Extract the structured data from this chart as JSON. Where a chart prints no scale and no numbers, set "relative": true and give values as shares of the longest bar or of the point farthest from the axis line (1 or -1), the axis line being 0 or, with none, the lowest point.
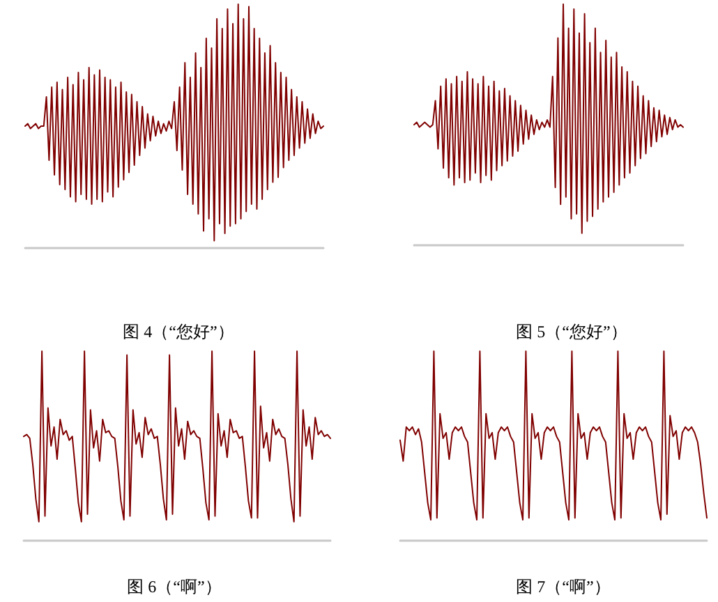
{
  "chart_data": [
    {
      "type": "line",
      "title": "图 4（“您好”）",
      "relative": true,
      "color": "#800000",
      "categories": [
        null,
        null,
        null,
        null,
        null,
        null,
        null,
        null,
        null,
        null,
        null,
        null,
        null,
        null,
        null,
        null,
        null,
        null,
        null,
        null,
        null,
        null,
        null,
        null,
        null,
        null,
        null,
        null,
        null,
        null,
        null,
        null,
        null,
        null,
        null,
        null,
        null,
        null,
        null,
        null,
        null,
        null,
        null,
        null,
        null,
        null,
        null,
        null,
        null,
        null,
        null,
        null,
        null,
        null,
        null,
        null,
        null,
        null,
        null,
        null,
        null,
        null,
        null,
        null,
        null,
        null,
        null,
        null,
        null,
        null,
        null,
        null,
        null,
        null,
        null,
        null,
        null,
        null,
        null,
        null,
        null,
        null,
        null,
        null,
        null,
        null,
        null,
        null,
        null,
        null,
        null,
        null,
        null,
        null,
        null,
        null,
        null,
        null,
        null,
        null,
        null,
        null,
        null,
        null,
        null,
        null,
        null,
        null,
        null,
        null,
        null,
        null,
        null
      ],
      "values": [
        0.5,
        0.51,
        0.49,
        0.5,
        0.51,
        0.49,
        0.5,
        0.5,
        0.62,
        0.36,
        0.66,
        0.3,
        0.68,
        0.26,
        0.65,
        0.24,
        0.7,
        0.21,
        0.67,
        0.19,
        0.72,
        0.22,
        0.69,
        0.2,
        0.74,
        0.18,
        0.71,
        0.2,
        0.73,
        0.19,
        0.7,
        0.23,
        0.69,
        0.21,
        0.66,
        0.25,
        0.68,
        0.28,
        0.64,
        0.31,
        0.63,
        0.34,
        0.6,
        0.38,
        0.58,
        0.41,
        0.55,
        0.44,
        0.54,
        0.46,
        0.52,
        0.47,
        0.51,
        0.48,
        0.52,
        0.49,
        0.6,
        0.4,
        0.66,
        0.32,
        0.76,
        0.22,
        0.7,
        0.18,
        0.8,
        0.14,
        0.74,
        0.07,
        0.86,
        0.12,
        0.82,
        0.03,
        0.94,
        0.1,
        0.9,
        0.06,
        0.98,
        0.09,
        0.92,
        0.1,
        1.0,
        0.12,
        0.94,
        0.15,
        0.99,
        0.18,
        0.9,
        0.16,
        0.86,
        0.2,
        0.8,
        0.24,
        0.83,
        0.27,
        0.76,
        0.29,
        0.72,
        0.33,
        0.7,
        0.36,
        0.65,
        0.38,
        0.62,
        0.41,
        0.6,
        0.43,
        0.57,
        0.45,
        0.55,
        0.47,
        0.52,
        0.49,
        0.5
      ]
    },
    {
      "type": "line",
      "title": "图 5（“您好”）",
      "relative": true,
      "color": "#800000",
      "categories": [
        null,
        null,
        null,
        null,
        null,
        null,
        null,
        null,
        null,
        null,
        null,
        null,
        null,
        null,
        null,
        null,
        null,
        null,
        null,
        null,
        null,
        null,
        null,
        null,
        null,
        null,
        null,
        null,
        null,
        null,
        null,
        null,
        null,
        null,
        null,
        null,
        null,
        null,
        null,
        null,
        null,
        null,
        null,
        null,
        null,
        null,
        null,
        null,
        null,
        null,
        null,
        null,
        null,
        null,
        null,
        null,
        null,
        null,
        null,
        null,
        null,
        null,
        null,
        null,
        null,
        null,
        null,
        null,
        null,
        null,
        null,
        null,
        null,
        null,
        null,
        null,
        null,
        null,
        null,
        null,
        null,
        null,
        null,
        null,
        null,
        null,
        null,
        null,
        null,
        null,
        null,
        null,
        null,
        null,
        null,
        null,
        null,
        null,
        null,
        null,
        null,
        null
      ],
      "values": [
        0.5,
        0.51,
        0.49,
        0.5,
        0.51,
        0.5,
        0.49,
        0.5,
        0.6,
        0.4,
        0.66,
        0.32,
        0.69,
        0.28,
        0.67,
        0.25,
        0.7,
        0.28,
        0.68,
        0.26,
        0.72,
        0.27,
        0.69,
        0.3,
        0.67,
        0.26,
        0.7,
        0.29,
        0.66,
        0.27,
        0.68,
        0.31,
        0.64,
        0.33,
        0.65,
        0.35,
        0.62,
        0.37,
        0.6,
        0.39,
        0.58,
        0.42,
        0.56,
        0.44,
        0.54,
        0.46,
        0.52,
        0.48,
        0.51,
        0.49,
        0.52,
        0.49,
        0.7,
        0.24,
        0.86,
        0.17,
        1.0,
        0.2,
        0.9,
        0.11,
        0.98,
        0.13,
        0.88,
        0.05,
        0.96,
        0.1,
        0.84,
        0.12,
        0.9,
        0.15,
        0.8,
        0.18,
        0.85,
        0.2,
        0.78,
        0.22,
        0.8,
        0.25,
        0.74,
        0.28,
        0.72,
        0.3,
        0.68,
        0.33,
        0.66,
        0.36,
        0.62,
        0.38,
        0.6,
        0.41,
        0.57,
        0.43,
        0.56,
        0.45,
        0.54,
        0.46,
        0.53,
        0.48,
        0.52,
        0.49,
        0.5,
        0.49
      ]
    },
    {
      "type": "line",
      "title": "图 6（“啊”）",
      "relative": true,
      "color": "#800000",
      "categories": [
        null,
        null,
        null,
        null,
        null,
        null,
        null,
        null,
        null,
        null,
        null,
        null,
        null,
        null,
        null,
        null,
        null,
        null,
        null,
        null,
        null,
        null,
        null,
        null,
        null,
        null,
        null,
        null,
        null,
        null,
        null,
        null,
        null,
        null,
        null,
        null,
        null,
        null,
        null,
        null,
        null,
        null,
        null,
        null,
        null,
        null,
        null,
        null,
        null,
        null,
        null,
        null,
        null,
        null,
        null,
        null,
        null,
        null,
        null,
        null,
        null,
        null,
        null,
        null,
        null,
        null,
        null,
        null,
        null,
        null,
        null,
        null,
        null,
        null,
        null,
        null,
        null,
        null,
        null,
        null,
        null,
        null,
        null,
        null,
        null,
        null,
        null,
        null,
        null,
        null,
        null,
        null,
        null,
        null,
        null,
        null,
        null,
        null,
        null,
        null,
        null,
        null
      ],
      "values": [
        0.55,
        0.56,
        0.54,
        0.4,
        0.22,
        0.1,
        1.0,
        0.13,
        0.7,
        0.5,
        0.6,
        0.43,
        0.64,
        0.56,
        0.58,
        0.53,
        0.55,
        0.38,
        0.2,
        0.1,
        1.0,
        0.14,
        0.69,
        0.49,
        0.58,
        0.42,
        0.64,
        0.57,
        0.58,
        0.55,
        0.54,
        0.39,
        0.21,
        0.11,
        0.98,
        0.13,
        0.69,
        0.51,
        0.57,
        0.44,
        0.65,
        0.56,
        0.59,
        0.54,
        0.55,
        0.4,
        0.22,
        0.11,
        0.98,
        0.14,
        0.7,
        0.5,
        0.59,
        0.43,
        0.63,
        0.56,
        0.58,
        0.55,
        0.54,
        0.38,
        0.2,
        0.11,
        1.0,
        0.13,
        0.67,
        0.5,
        0.58,
        0.44,
        0.64,
        0.57,
        0.58,
        0.54,
        0.55,
        0.39,
        0.21,
        0.12,
        1.0,
        0.12,
        0.71,
        0.49,
        0.57,
        0.42,
        0.64,
        0.56,
        0.59,
        0.55,
        0.54,
        0.4,
        0.22,
        0.1,
        1.0,
        0.13,
        0.69,
        0.5,
        0.6,
        0.43,
        0.65,
        0.56,
        0.58,
        0.55,
        0.56,
        0.54
      ]
    },
    {
      "type": "line",
      "title": "图 7（“啊”）",
      "relative": true,
      "color": "#800000",
      "categories": [
        null,
        null,
        null,
        null,
        null,
        null,
        null,
        null,
        null,
        null,
        null,
        null,
        null,
        null,
        null,
        null,
        null,
        null,
        null,
        null,
        null,
        null,
        null,
        null,
        null,
        null,
        null,
        null,
        null,
        null,
        null,
        null,
        null,
        null,
        null,
        null,
        null,
        null,
        null,
        null,
        null,
        null,
        null,
        null,
        null,
        null,
        null,
        null,
        null,
        null,
        null,
        null,
        null,
        null,
        null,
        null,
        null,
        null,
        null,
        null,
        null,
        null,
        null,
        null,
        null,
        null,
        null,
        null,
        null,
        null,
        null,
        null,
        null,
        null,
        null,
        null,
        null,
        null,
        null,
        null,
        null,
        null,
        null,
        null,
        null,
        null,
        null,
        null,
        null,
        null,
        null,
        null,
        null,
        null,
        null,
        null,
        null,
        null,
        null,
        null,
        null
      ],
      "values": [
        0.53,
        0.42,
        0.6,
        0.58,
        0.6,
        0.56,
        0.59,
        0.52,
        0.36,
        0.2,
        0.11,
        1.0,
        0.12,
        0.67,
        0.54,
        0.57,
        0.43,
        0.57,
        0.6,
        0.58,
        0.6,
        0.55,
        0.52,
        0.36,
        0.2,
        0.11,
        1.0,
        0.12,
        0.67,
        0.54,
        0.57,
        0.43,
        0.57,
        0.6,
        0.58,
        0.6,
        0.55,
        0.52,
        0.36,
        0.2,
        0.11,
        1.0,
        0.12,
        0.67,
        0.54,
        0.57,
        0.43,
        0.57,
        0.6,
        0.58,
        0.6,
        0.55,
        0.52,
        0.36,
        0.2,
        0.11,
        1.0,
        0.12,
        0.67,
        0.54,
        0.57,
        0.43,
        0.57,
        0.6,
        0.58,
        0.6,
        0.55,
        0.52,
        0.36,
        0.2,
        0.11,
        1.0,
        0.12,
        0.67,
        0.54,
        0.57,
        0.43,
        0.57,
        0.6,
        0.58,
        0.6,
        0.55,
        0.52,
        0.36,
        0.2,
        0.11,
        1.0,
        0.14,
        0.66,
        0.55,
        0.58,
        0.43,
        0.57,
        0.6,
        0.58,
        0.6,
        0.57,
        0.52,
        0.4,
        0.25,
        0.12
      ]
    }
  ]
}
